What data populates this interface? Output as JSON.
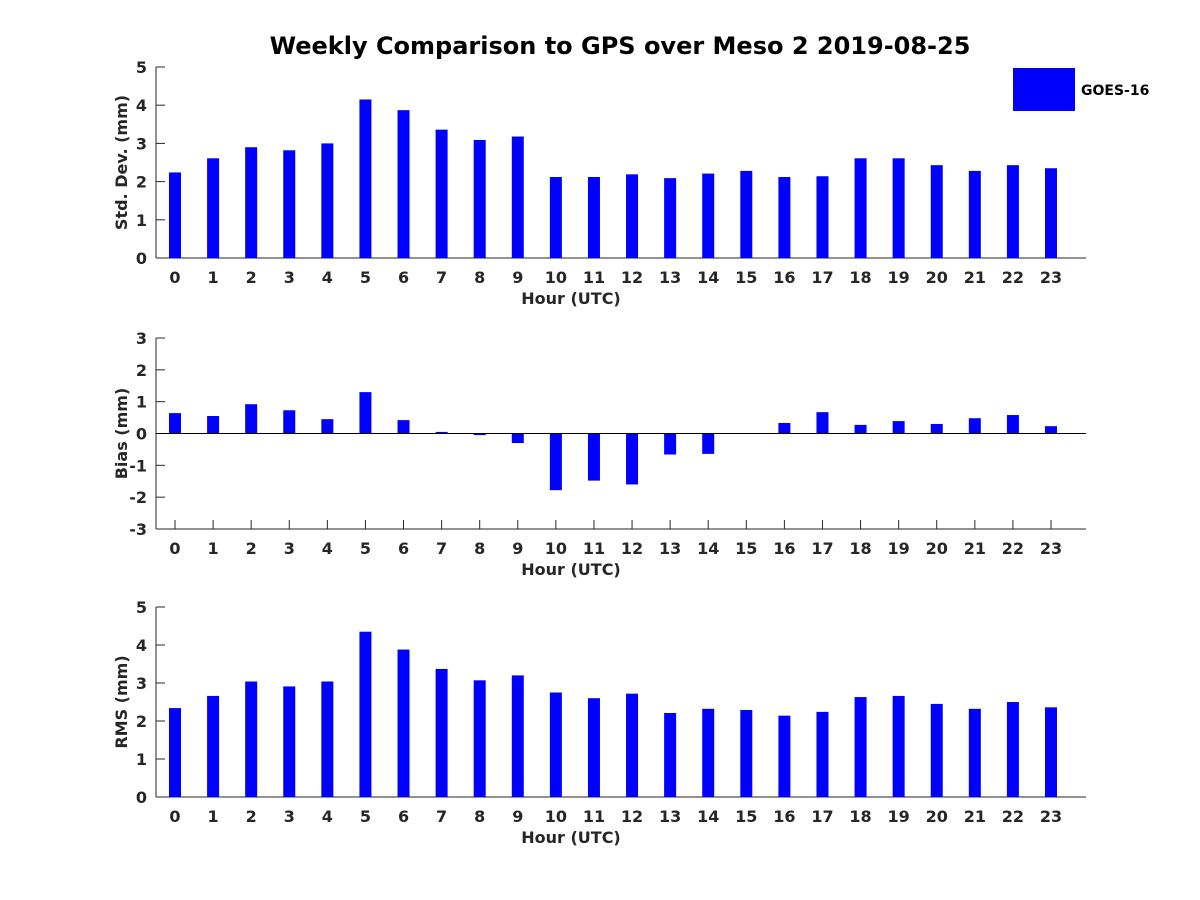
{
  "title": "Weekly Comparison to GPS over Meso 2 2019-08-25",
  "legend": {
    "label": "GOES-16",
    "color": "#0000ff"
  },
  "colors": {
    "bar": "#0000ff",
    "axis": "#262626"
  },
  "chart_data": [
    {
      "type": "bar",
      "name": "std-dev",
      "title": "Weekly Comparison to GPS over Meso 2 2019-08-25",
      "xlabel": "Hour (UTC)",
      "ylabel": "Std. Dev. (mm)",
      "ylim": [
        0,
        5
      ],
      "yticks": [
        0,
        1,
        2,
        3,
        4,
        5
      ],
      "categories": [
        "0",
        "1",
        "2",
        "3",
        "4",
        "5",
        "6",
        "7",
        "8",
        "9",
        "10",
        "11",
        "12",
        "13",
        "14",
        "15",
        "16",
        "17",
        "18",
        "19",
        "20",
        "21",
        "22",
        "23"
      ],
      "series": [
        {
          "name": "GOES-16",
          "values": [
            2.24,
            2.61,
            2.9,
            2.82,
            3.0,
            4.15,
            3.87,
            3.36,
            3.09,
            3.18,
            2.12,
            2.12,
            2.19,
            2.09,
            2.21,
            2.28,
            2.12,
            2.14,
            2.61,
            2.61,
            2.43,
            2.28,
            2.43,
            2.35
          ]
        }
      ]
    },
    {
      "type": "bar",
      "name": "bias",
      "xlabel": "Hour (UTC)",
      "ylabel": "Bias (mm)",
      "ylim": [
        -3,
        3
      ],
      "yticks": [
        -3,
        -2,
        -1,
        0,
        1,
        2,
        3
      ],
      "zero_line": true,
      "categories": [
        "0",
        "1",
        "2",
        "3",
        "4",
        "5",
        "6",
        "7",
        "8",
        "9",
        "10",
        "11",
        "12",
        "13",
        "14",
        "15",
        "16",
        "17",
        "18",
        "19",
        "20",
        "21",
        "22",
        "23"
      ],
      "series": [
        {
          "name": "GOES-16",
          "values": [
            0.64,
            0.55,
            0.92,
            0.73,
            0.45,
            1.3,
            0.42,
            0.05,
            -0.05,
            -0.3,
            -1.78,
            -1.48,
            -1.6,
            -0.66,
            -0.64,
            0.0,
            0.33,
            0.67,
            0.27,
            0.39,
            0.3,
            0.48,
            0.58,
            0.23
          ]
        }
      ]
    },
    {
      "type": "bar",
      "name": "rms",
      "xlabel": "Hour (UTC)",
      "ylabel": "RMS (mm)",
      "ylim": [
        0,
        5
      ],
      "yticks": [
        0,
        1,
        2,
        3,
        4,
        5
      ],
      "categories": [
        "0",
        "1",
        "2",
        "3",
        "4",
        "5",
        "6",
        "7",
        "8",
        "9",
        "10",
        "11",
        "12",
        "13",
        "14",
        "15",
        "16",
        "17",
        "18",
        "19",
        "20",
        "21",
        "22",
        "23"
      ],
      "series": [
        {
          "name": "GOES-16",
          "values": [
            2.34,
            2.66,
            3.04,
            2.91,
            3.04,
            4.35,
            3.88,
            3.37,
            3.07,
            3.2,
            2.75,
            2.6,
            2.72,
            2.21,
            2.32,
            2.29,
            2.14,
            2.24,
            2.63,
            2.66,
            2.45,
            2.32,
            2.5,
            2.36
          ]
        }
      ]
    }
  ]
}
